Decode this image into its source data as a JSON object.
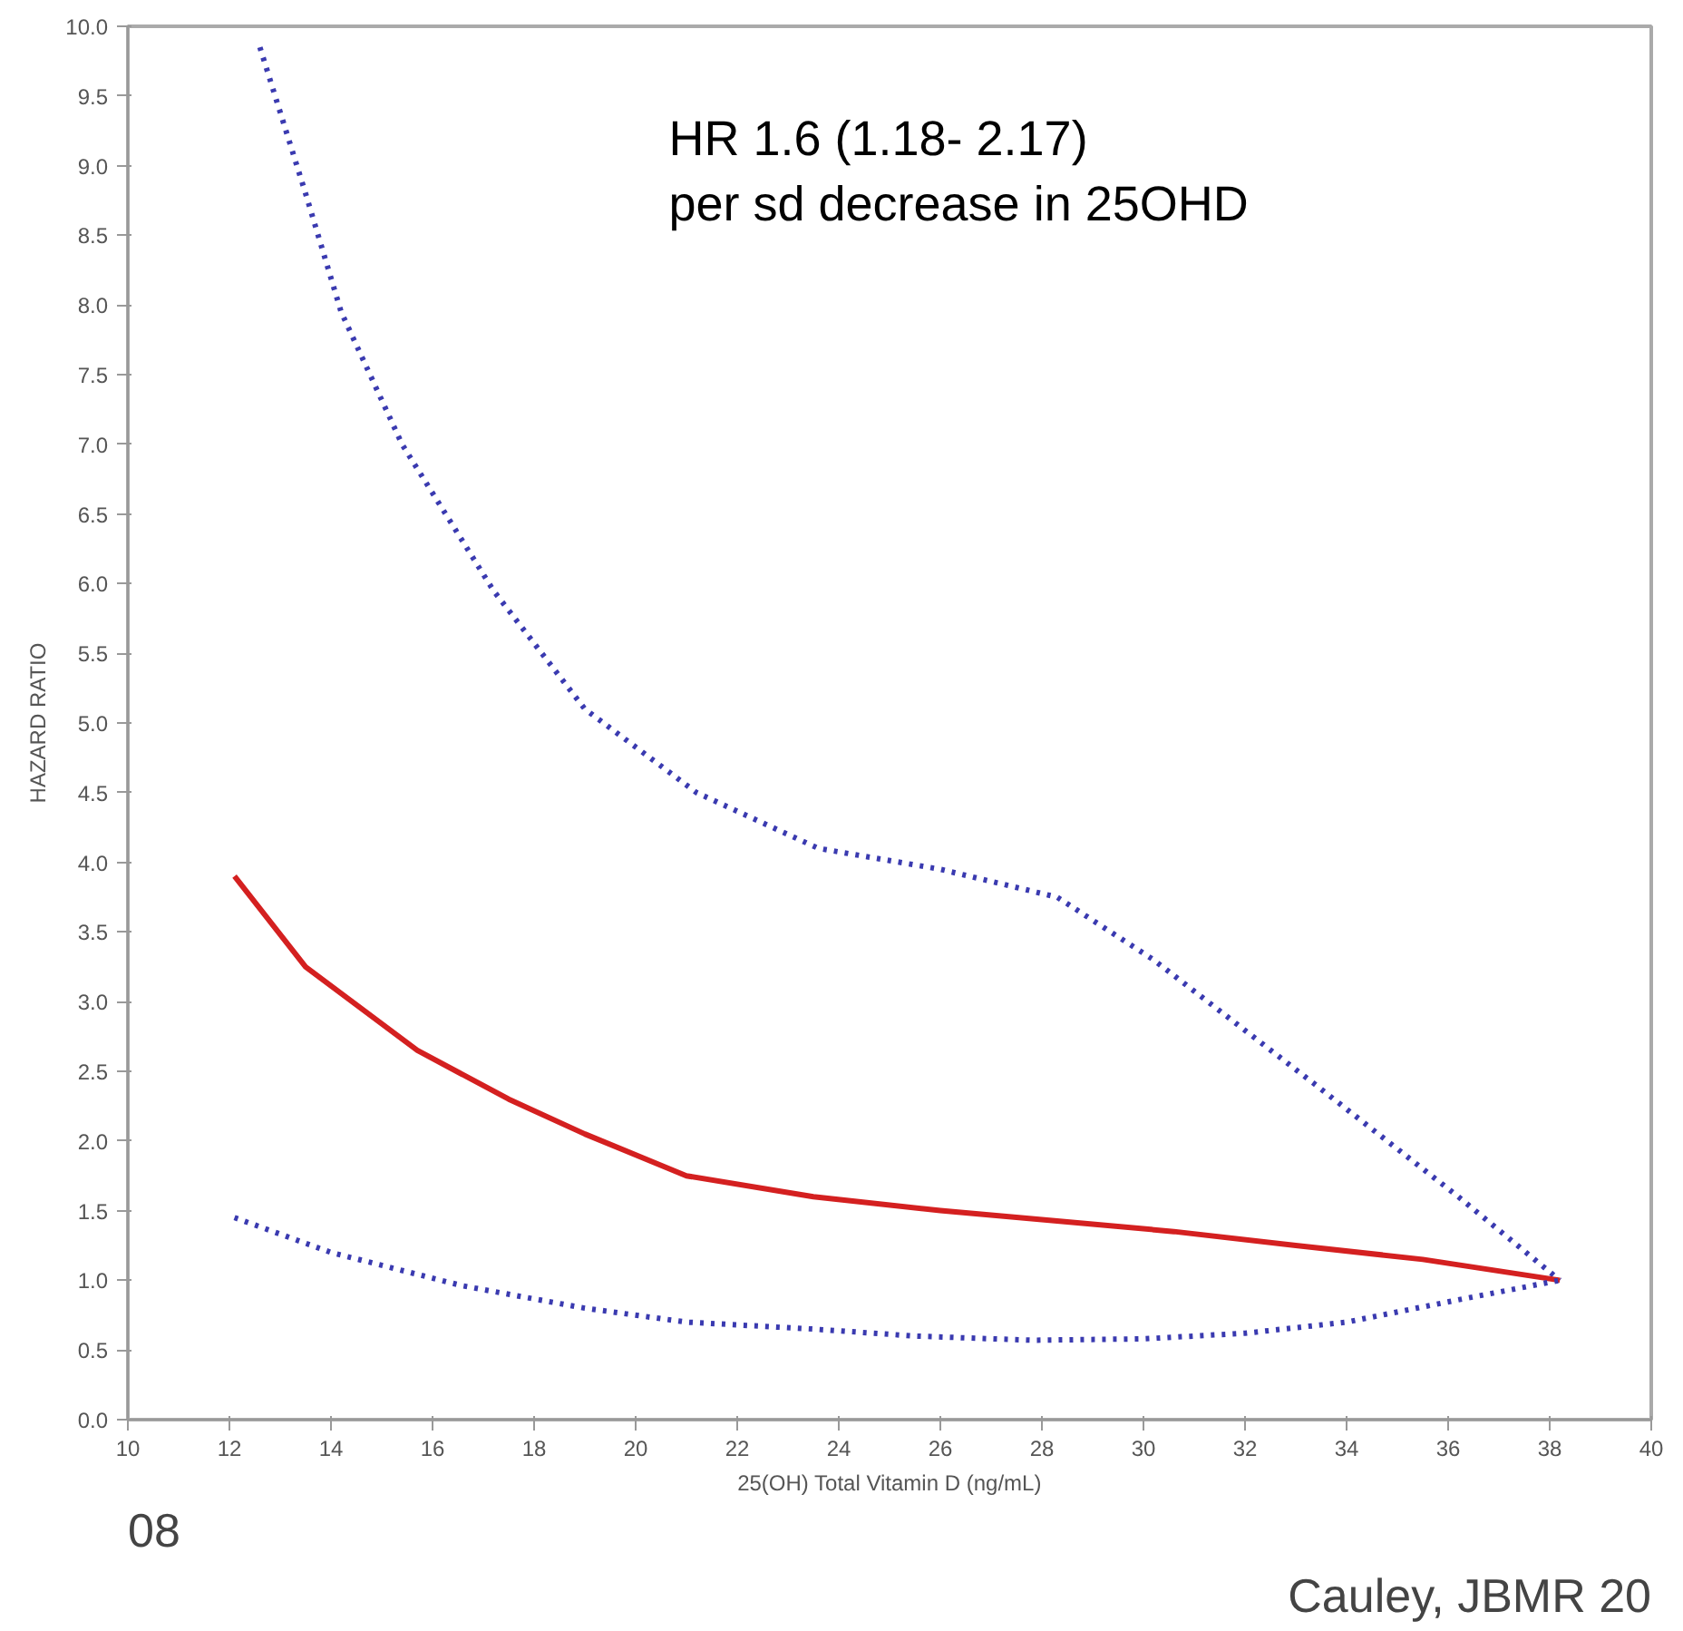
{
  "chart_data": {
    "type": "line",
    "xlabel": "25(OH) Total Vitamin D (ng/mL)",
    "ylabel": "HAZARD RATIO",
    "annotations": [
      "HR 1.6 (1.18- 2.17)\nper sd decrease in 25OHD",
      "08",
      "Cauley, JBMR 20"
    ],
    "series": [
      {
        "color": "#3a3ab0",
        "line_style": "dotted",
        "x": [
          12.6,
          13.5,
          14.2,
          15.4,
          17.2,
          19.0,
          21.2,
          23.6,
          26.0,
          28.3,
          30.2,
          33.4,
          36.2,
          38.2
        ],
        "values": [
          9.85,
          8.8,
          7.95,
          7.0,
          5.95,
          5.1,
          4.5,
          4.1,
          3.95,
          3.75,
          3.3,
          2.4,
          1.6,
          1.0
        ]
      },
      {
        "color": "#d42020",
        "line_style": "solid",
        "x": [
          12.1,
          13.5,
          15.7,
          17.5,
          19.0,
          21.0,
          23.5,
          26.0,
          28.5,
          30.6,
          33.0,
          35.5,
          38.2
        ],
        "values": [
          3.9,
          3.25,
          2.65,
          2.3,
          2.05,
          1.75,
          1.6,
          1.5,
          1.42,
          1.35,
          1.25,
          1.15,
          1.0
        ]
      },
      {
        "color": "#3a3ab0",
        "line_style": "dotted",
        "x": [
          12.1,
          14.0,
          16.6,
          19.0,
          21.0,
          23.5,
          25.5,
          27.8,
          30.0,
          32.0,
          34.0,
          36.2,
          38.2
        ],
        "values": [
          1.45,
          1.2,
          0.96,
          0.8,
          0.7,
          0.65,
          0.6,
          0.57,
          0.58,
          0.62,
          0.7,
          0.86,
          1.0
        ]
      }
    ],
    "xlim": [
      10,
      40
    ],
    "xticks": [
      10,
      12,
      14,
      16,
      18,
      20,
      22,
      24,
      26,
      28,
      30,
      32,
      34,
      36,
      38,
      40
    ],
    "ylim": [
      0,
      10
    ],
    "yticks": [
      {
        "value": 0,
        "label": "0.0"
      },
      {
        "value": 0.5,
        "label": "0.5"
      },
      {
        "value": 1,
        "label": "1.0"
      },
      {
        "value": 1.5,
        "label": "1.5"
      },
      {
        "value": 2,
        "label": "2.0"
      },
      {
        "value": 2.5,
        "label": "2.5"
      },
      {
        "value": 3,
        "label": "3.0"
      },
      {
        "value": 3.5,
        "label": "3.5"
      },
      {
        "value": 4,
        "label": "4.0"
      },
      {
        "value": 4.5,
        "label": "4.5"
      },
      {
        "value": 5,
        "label": "5.0"
      },
      {
        "value": 5.5,
        "label": "5.5"
      },
      {
        "value": 6,
        "label": "6.0"
      },
      {
        "value": 6.5,
        "label": "6.5"
      },
      {
        "value": 7,
        "label": "7.0"
      },
      {
        "value": 7.5,
        "label": "7.5"
      },
      {
        "value": 8,
        "label": "8.0"
      },
      {
        "value": 8.5,
        "label": "8.5"
      },
      {
        "value": 9,
        "label": "9.0"
      },
      {
        "value": 9.5,
        "label": "9.5"
      },
      {
        "value": 10,
        "label": "10.0"
      }
    ],
    "grid": false
  }
}
